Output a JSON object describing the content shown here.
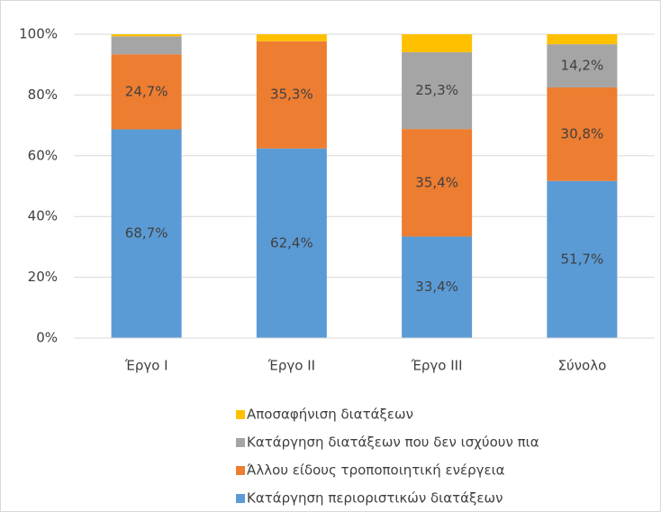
{
  "chart_data": {
    "type": "stacked_bar",
    "categories": [
      "Έργο I",
      "Έργο II",
      "Έργο III",
      "Σύνολο"
    ],
    "series": [
      {
        "name": "Κατάργηση περιοριστικών διατάξεων",
        "color": "#5b9bd5",
        "values": [
          68.7,
          62.4,
          33.4,
          51.7
        ],
        "value_labels": [
          "68,7%",
          "62,4%",
          "33,4%",
          "51,7%"
        ]
      },
      {
        "name": "Άλλου είδους τροποποιητική ενέργεια",
        "color": "#ed7d31",
        "values": [
          24.7,
          35.3,
          35.4,
          30.8
        ],
        "value_labels": [
          "24,7%",
          "35,3%",
          "35,4%",
          "30,8%"
        ]
      },
      {
        "name": "Κατάργηση διατάξεων που δεν ισχύουν πια",
        "color": "#a5a5a5",
        "values": [
          5.9,
          0,
          25.3,
          14.2
        ],
        "value_labels": [
          null,
          null,
          "25,3%",
          "14,2%"
        ]
      },
      {
        "name": "Αποσαφήνιση διατάξεων",
        "color": "#ffc000",
        "values": [
          0.7,
          2.3,
          5.9,
          3.3
        ],
        "value_labels": [
          null,
          null,
          null,
          null
        ]
      }
    ],
    "ylim": [
      0,
      100
    ],
    "yticks": [
      {
        "value": 0,
        "label": "0%"
      },
      {
        "value": 20,
        "label": "20%"
      },
      {
        "value": 40,
        "label": "40%"
      },
      {
        "value": 60,
        "label": "60%"
      },
      {
        "value": 80,
        "label": "80%"
      },
      {
        "value": 100,
        "label": "100%"
      }
    ],
    "grid": true,
    "legend": "bottom"
  }
}
